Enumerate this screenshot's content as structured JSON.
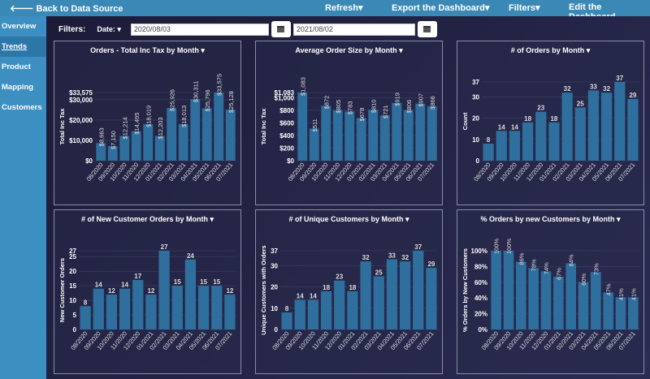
{
  "topbar": {
    "back": "🡐 Back to Data Source",
    "refresh": "Refresh▾",
    "export": "Export the Dashboard▾",
    "filters": "Filters▾",
    "edit": "Edit the Dashboard"
  },
  "sidebar": {
    "items": [
      {
        "label": "Overview"
      },
      {
        "label": "Trends",
        "active": true
      },
      {
        "label": "Product"
      },
      {
        "label": "Mapping"
      },
      {
        "label": "Customers"
      }
    ]
  },
  "filters": {
    "label": "Filters:",
    "date_label": "Date: ▾",
    "start": "2020/08/03",
    "end": "2021/08/02",
    "icon": "calendar-icon"
  },
  "colors": {
    "bar": "#2e6f9e",
    "topbar": "#3a88b6",
    "sidebar": "#3d8fc2",
    "background": "#1e1d3a"
  },
  "chart_data": [
    {
      "type": "bar",
      "title": "Orders - Total Inc Tax by Month ▾",
      "ylabel": "Total Inc Tax",
      "format": "currency",
      "rotate_labels": true,
      "ylim": [
        0,
        33575
      ],
      "yticks": [
        0,
        10000,
        20000,
        30000,
        33575
      ],
      "ytick_labels": [
        "$0",
        "$10,000",
        "$20,000",
        "$30,000",
        "$33,575"
      ],
      "categories": [
        "08/2020",
        "09/2020",
        "10/2020",
        "11/2020",
        "12/2020",
        "01/2021",
        "02/2021",
        "03/2021",
        "04/2021",
        "05/2021",
        "06/2021",
        "07/2021"
      ],
      "values": [
        8663,
        7150,
        12214,
        14495,
        18019,
        12203,
        25926,
        18013,
        30311,
        25796,
        33575,
        25128
      ],
      "labels": [
        "$8,663",
        "$7,150",
        "$12,214",
        "$14,495",
        "$18,019",
        "$12,203",
        "$25,926",
        "$18,013",
        "$30,311",
        "$25,796",
        "$33,575",
        "$25,128"
      ]
    },
    {
      "type": "bar",
      "title": "Average Order Size by Month ▾",
      "ylabel": "Total Inc Tax",
      "format": "currency",
      "rotate_labels": true,
      "ylim": [
        0,
        1083
      ],
      "yticks": [
        0,
        200,
        400,
        600,
        800,
        1000,
        1083
      ],
      "ytick_labels": [
        "$0",
        "$200",
        "$400",
        "$600",
        "$800",
        "$1,000",
        "$1,083"
      ],
      "categories": [
        "08/2020",
        "09/2020",
        "10/2020",
        "11/2020",
        "12/2020",
        "01/2021",
        "02/2021",
        "03/2021",
        "04/2021",
        "05/2021",
        "06/2021",
        "07/2021"
      ],
      "values": [
        1083,
        511,
        872,
        805,
        783,
        678,
        810,
        721,
        919,
        806,
        907,
        866
      ],
      "labels": [
        "$1,083",
        "$511",
        "$872",
        "$805",
        "$783",
        "$678",
        "$810",
        "$721",
        "$919",
        "$806",
        "$907",
        "$866"
      ]
    },
    {
      "type": "bar",
      "title": "# of Orders by Month ▾",
      "ylabel": "Count",
      "rotate_labels": false,
      "ylim": [
        0,
        37
      ],
      "yticks": [
        0,
        10,
        20,
        30,
        37
      ],
      "ytick_labels": [
        "0",
        "10",
        "20",
        "30",
        "37"
      ],
      "categories": [
        "08/2020",
        "09/2020",
        "10/2020",
        "11/2020",
        "12/2020",
        "01/2021",
        "02/2021",
        "03/2021",
        "04/2021",
        "05/2021",
        "06/2021",
        "07/2021"
      ],
      "values": [
        8,
        14,
        14,
        18,
        23,
        18,
        32,
        25,
        33,
        32,
        37,
        29
      ],
      "labels": [
        "8",
        "14",
        "14",
        "18",
        "23",
        "18",
        "32",
        "25",
        "33",
        "32",
        "37",
        "29"
      ]
    },
    {
      "type": "bar",
      "title": "# of New Customer Orders by Month ▾",
      "ylabel": "New Customer Orders",
      "rotate_labels": false,
      "ylim": [
        0,
        27
      ],
      "yticks": [
        0,
        5,
        10,
        15,
        20,
        25,
        27
      ],
      "ytick_labels": [
        "0",
        "5",
        "10",
        "15",
        "20",
        "25",
        "27"
      ],
      "categories": [
        "08/2020",
        "09/2020",
        "10/2020",
        "11/2020",
        "12/2020",
        "01/2021",
        "02/2021",
        "03/2021",
        "04/2021",
        "05/2021",
        "06/2021",
        "07/2021"
      ],
      "values": [
        8,
        14,
        12,
        14,
        17,
        12,
        27,
        15,
        24,
        15,
        15,
        12
      ],
      "labels": [
        "8",
        "14",
        "12",
        "14",
        "17",
        "12",
        "27",
        "15",
        "24",
        "15",
        "15",
        "12"
      ]
    },
    {
      "type": "bar",
      "title": "# of Unique Customers by Month ▾",
      "ylabel": "Unique Customers with Orders",
      "rotate_labels": false,
      "ylim": [
        0,
        37
      ],
      "yticks": [
        0,
        10,
        20,
        30,
        37
      ],
      "ytick_labels": [
        "0",
        "10",
        "20",
        "30",
        "37"
      ],
      "categories": [
        "08/2020",
        "09/2020",
        "10/2020",
        "11/2020",
        "12/2020",
        "01/2021",
        "02/2021",
        "03/2021",
        "04/2021",
        "05/2021",
        "06/2021",
        "07/2021"
      ],
      "values": [
        8,
        14,
        14,
        18,
        23,
        18,
        32,
        25,
        33,
        32,
        37,
        29
      ],
      "labels": [
        "8",
        "14",
        "14",
        "18",
        "23",
        "18",
        "32",
        "25",
        "33",
        "32",
        "37",
        "29"
      ]
    },
    {
      "type": "bar",
      "title": "% Orders by new Customers by Month ▾",
      "ylabel": "% Orders by New Customers",
      "rotate_labels": true,
      "ylim": [
        0,
        100
      ],
      "yticks": [
        0,
        20,
        40,
        60,
        80,
        100
      ],
      "ytick_labels": [
        "0%",
        "20%",
        "40%",
        "60%",
        "80%",
        "100%"
      ],
      "categories": [
        "08/2020",
        "09/2020",
        "10/2020",
        "11/2020",
        "12/2020",
        "01/2021",
        "02/2021",
        "03/2021",
        "04/2021",
        "05/2021",
        "06/2021",
        "07/2021"
      ],
      "values": [
        100,
        100,
        86,
        78,
        74,
        67,
        84,
        60,
        73,
        47,
        41,
        41
      ],
      "labels": [
        "100%",
        "100%",
        "86%",
        "78%",
        "74%",
        "67%",
        "84%",
        "60%",
        "73%",
        "47%",
        "41%",
        "41%"
      ]
    }
  ]
}
